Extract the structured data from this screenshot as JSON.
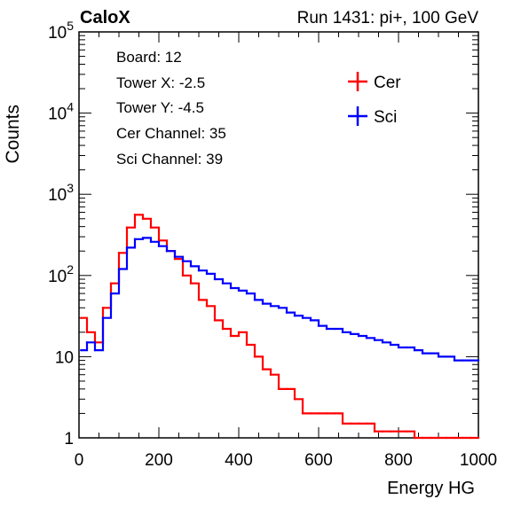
{
  "header": {
    "experiment": "CaloX",
    "run_info": "Run 1431: pi+, 100 GeV"
  },
  "info_box": {
    "lines": [
      "Board: 12",
      "Tower X: -2.5",
      "Tower Y: -4.5",
      "Cer Channel: 35",
      "Sci Channel: 39"
    ]
  },
  "chart_data": {
    "type": "line",
    "title": "",
    "xlabel": "Energy HG",
    "ylabel": "Counts",
    "xlim": [
      0,
      1000
    ],
    "ylim": [
      1,
      100000
    ],
    "yscale": "log",
    "grid": false,
    "legend_position": "top-right",
    "x_ticks": [
      "0",
      "200",
      "400",
      "600",
      "800",
      "1000"
    ],
    "y_ticks": [
      "1",
      "10",
      "10^2",
      "10^3",
      "10^4",
      "10^5"
    ],
    "series": [
      {
        "name": "Cer",
        "color": "#ff0000",
        "x": [
          5,
          20,
          40,
          60,
          80,
          100,
          120,
          140,
          160,
          180,
          200,
          220,
          240,
          260,
          280,
          300,
          320,
          340,
          360,
          380,
          400,
          420,
          440,
          460,
          480,
          500,
          520,
          540,
          560,
          580,
          600,
          620,
          640,
          660,
          680,
          700,
          720,
          740,
          760,
          780,
          800,
          820,
          840,
          860,
          880,
          900,
          920,
          940,
          960,
          980,
          1000
        ],
        "y": [
          30,
          20,
          15,
          40,
          80,
          190,
          390,
          560,
          500,
          390,
          270,
          200,
          160,
          100,
          80,
          50,
          42,
          28,
          22,
          18,
          20,
          14,
          10,
          7,
          6,
          4,
          4,
          3,
          2,
          2,
          2,
          2,
          2,
          1.5,
          1.5,
          1.5,
          1.5,
          1.2,
          1.2,
          1.2,
          1.2,
          1.2,
          1,
          1,
          1,
          1,
          1,
          1,
          1,
          1,
          1
        ]
      },
      {
        "name": "Sci",
        "color": "#0000ff",
        "x": [
          5,
          20,
          40,
          60,
          80,
          100,
          120,
          140,
          160,
          180,
          200,
          220,
          240,
          260,
          280,
          300,
          320,
          340,
          360,
          380,
          400,
          420,
          440,
          460,
          480,
          500,
          520,
          540,
          560,
          580,
          600,
          620,
          640,
          660,
          680,
          700,
          720,
          740,
          760,
          780,
          800,
          820,
          840,
          860,
          880,
          900,
          920,
          940,
          960,
          980,
          1000
        ],
        "y": [
          12,
          15,
          12,
          30,
          60,
          120,
          220,
          280,
          290,
          260,
          230,
          200,
          170,
          150,
          130,
          115,
          105,
          90,
          80,
          70,
          65,
          60,
          50,
          45,
          42,
          40,
          35,
          32,
          30,
          28,
          24,
          22,
          22,
          20,
          19,
          18,
          17,
          16,
          15,
          14,
          13,
          13,
          12,
          11,
          11,
          10,
          10,
          9,
          9,
          9,
          9
        ]
      }
    ]
  }
}
